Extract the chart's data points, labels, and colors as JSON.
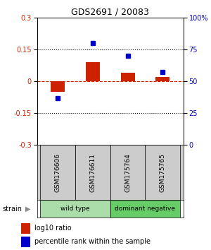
{
  "title": "GDS2691 / 20083",
  "samples": [
    "GSM176606",
    "GSM176611",
    "GSM175764",
    "GSM175765"
  ],
  "log10_ratio": [
    -0.05,
    0.09,
    0.04,
    0.02
  ],
  "percentile_rank": [
    37,
    80,
    70,
    57
  ],
  "groups": [
    {
      "label": "wild type",
      "samples": [
        0,
        1
      ],
      "color": "#aaddaa"
    },
    {
      "label": "dominant negative",
      "samples": [
        2,
        3
      ],
      "color": "#66cc66"
    }
  ],
  "group_label": "strain",
  "ylim_left": [
    -0.3,
    0.3
  ],
  "ylim_right": [
    0,
    100
  ],
  "yticks_left": [
    -0.3,
    -0.15,
    0,
    0.15,
    0.3
  ],
  "yticks_right": [
    0,
    25,
    50,
    75,
    100
  ],
  "ytick_labels_right": [
    "0",
    "25",
    "50",
    "75",
    "100%"
  ],
  "hlines": [
    0.15,
    -0.15
  ],
  "bar_width": 0.4,
  "red_color": "#cc2200",
  "blue_color": "#0000cc",
  "bg_color": "#ffffff",
  "plot_bg": "#ffffff",
  "sample_bg": "#cccccc",
  "legend_square_size": 7
}
